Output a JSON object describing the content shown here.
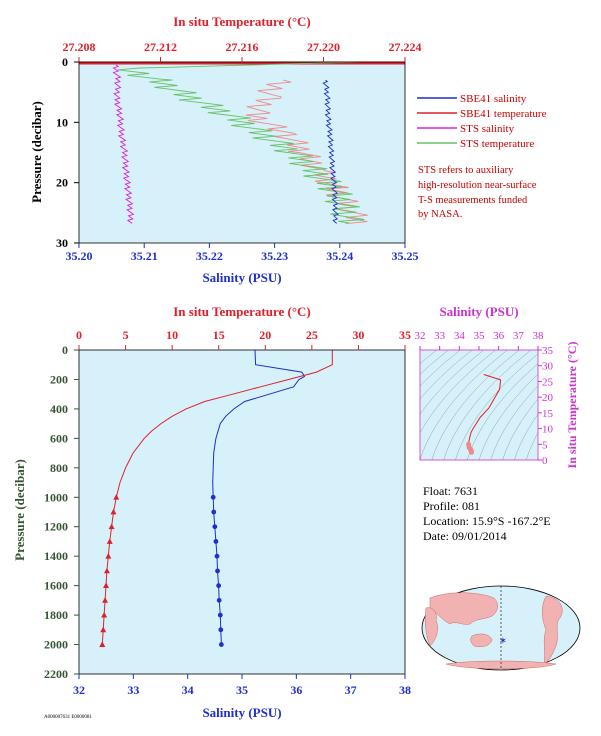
{
  "colors": {
    "panel_bg": "#d6f1fa",
    "salinity": "#1f2fd0",
    "temperature": "#e0202a",
    "sts_salinity": "#dd22dd",
    "sts_temperature": "#66c266",
    "sts_temperature_light": "#f08a8a",
    "pressure_axis": "#355535",
    "ts_axis": "#cc33cc",
    "annotation": "#cc0000",
    "text": "#000000"
  },
  "legend": {
    "items": [
      {
        "label": "SBE41 salinity",
        "color": "#1f2fd0"
      },
      {
        "label": "SBE41 temperature",
        "color": "#e0202a"
      },
      {
        "label": "STS salinity",
        "color": "#dd22dd"
      },
      {
        "label": "STS temperature",
        "color": "#66c266"
      }
    ]
  },
  "note": {
    "lines": [
      "STS refers to auxiliary",
      "high-resolution near-surface",
      "T-S measurements funded",
      "by NASA."
    ]
  },
  "float_info": {
    "float": "Float:  7631",
    "profile": "Profile:  081",
    "location": "Location:  15.9°S  -167.2°E",
    "date": "Date:  09/01/2014"
  },
  "footer_code": "A000007631 E0000081",
  "chart_data": [
    {
      "id": "near-surface",
      "type": "line",
      "xlabel_top": "In situ Temperature (°C)",
      "xlabel_bottom": "Salinity (PSU)",
      "ylabel": "Pressure (decibar)",
      "temperature_ticks": [
        "27.208",
        "27.212",
        "27.216",
        "27.220",
        "27.224"
      ],
      "temperature_range": [
        27.208,
        27.224
      ],
      "salinity_ticks": [
        "35.20",
        "35.21",
        "35.22",
        "35.23",
        "35.24",
        "35.25"
      ],
      "salinity_range": [
        35.2,
        35.25
      ],
      "pressure_ticks": [
        "0",
        "10",
        "20",
        "30"
      ],
      "pressure_range": [
        0,
        30
      ],
      "series": [
        {
          "name": "SBE41 salinity",
          "axis": "salinity",
          "pressure": [
            3,
            6,
            9,
            12,
            15,
            18,
            21,
            24,
            27
          ],
          "values": [
            35.2378,
            35.2381,
            35.2382,
            35.2385,
            35.2387,
            35.2389,
            35.2392,
            35.2393,
            35.2394
          ]
        },
        {
          "name": "STS salinity",
          "axis": "salinity",
          "pressure": [
            0.5,
            3,
            6,
            9,
            12,
            15,
            18,
            21,
            24,
            27
          ],
          "values": [
            35.2055,
            35.206,
            35.2058,
            35.2063,
            35.2065,
            35.207,
            35.2072,
            35.2075,
            35.2078,
            35.208
          ]
        },
        {
          "name": "STS temperature",
          "axis": "temperature",
          "pressure": [
            0,
            1,
            3,
            6,
            9,
            12,
            15,
            18,
            21,
            24,
            27
          ],
          "values": [
            27.2225,
            27.2102,
            27.2118,
            27.2135,
            27.2155,
            27.217,
            27.2185,
            27.2195,
            27.2205,
            27.221,
            27.2213
          ]
        },
        {
          "name": "STS temperature (warm band)",
          "axis": "temperature",
          "pressure": [
            3,
            6,
            9,
            12,
            15,
            18,
            21,
            24,
            27
          ],
          "values": [
            27.2178,
            27.2172,
            27.2166,
            27.2182,
            27.219,
            27.2198,
            27.2206,
            27.2212,
            27.2218
          ]
        }
      ]
    },
    {
      "id": "full-profile",
      "type": "line",
      "xlabel_top": "In situ Temperature (°C)",
      "xlabel_bottom": "Salinity (PSU)",
      "ylabel": "Pressure (decibar)",
      "temperature_ticks": [
        "0",
        "5",
        "10",
        "15",
        "20",
        "25",
        "30",
        "35"
      ],
      "temperature_range": [
        0,
        35
      ],
      "salinity_ticks": [
        "32",
        "33",
        "34",
        "35",
        "36",
        "37",
        "38"
      ],
      "salinity_range": [
        32,
        38
      ],
      "pressure_ticks": [
        "0",
        "200",
        "400",
        "600",
        "800",
        "1000",
        "1200",
        "1400",
        "1600",
        "1800",
        "2000",
        "2200"
      ],
      "pressure_range": [
        0,
        2200
      ],
      "series": [
        {
          "name": "SBE41 salinity",
          "axis": "salinity",
          "pressure": [
            0,
            100,
            150,
            180,
            200,
            250,
            300,
            350,
            400,
            450,
            500,
            600,
            700,
            800,
            900,
            1000,
            1100,
            1200,
            1300,
            1400,
            1500,
            1600,
            1700,
            1800,
            1900,
            2000
          ],
          "values": [
            35.24,
            35.25,
            36.1,
            36.15,
            36.05,
            35.95,
            35.5,
            35.05,
            34.85,
            34.7,
            34.6,
            34.52,
            34.48,
            34.47,
            34.46,
            34.47,
            34.48,
            34.5,
            34.52,
            34.54,
            34.55,
            34.57,
            34.58,
            34.6,
            34.61,
            34.62
          ]
        },
        {
          "name": "SBE41 temperature",
          "axis": "temperature",
          "pressure": [
            0,
            100,
            150,
            200,
            250,
            300,
            350,
            400,
            450,
            500,
            550,
            600,
            700,
            800,
            900,
            1000,
            1100,
            1200,
            1300,
            1400,
            1500,
            1600,
            1700,
            1800,
            1900,
            2000
          ],
          "values": [
            27.2,
            27.2,
            25.5,
            22.5,
            19.5,
            16.5,
            13.5,
            11.5,
            10.0,
            8.8,
            7.8,
            7.0,
            5.8,
            5.0,
            4.4,
            4.0,
            3.7,
            3.5,
            3.3,
            3.15,
            3.0,
            2.9,
            2.8,
            2.7,
            2.6,
            2.5
          ]
        }
      ]
    },
    {
      "id": "ts-diagram",
      "type": "line",
      "xlabel_top": "Salinity (PSU)",
      "ylabel_right": "In situ Temperature (°C)",
      "salinity_ticks": [
        "32",
        "33",
        "34",
        "35",
        "36",
        "37",
        "38"
      ],
      "salinity_range": [
        32,
        38
      ],
      "temperature_ticks": [
        "0",
        "5",
        "10",
        "15",
        "20",
        "25",
        "30",
        "35"
      ],
      "temperature_range": [
        0,
        35
      ],
      "series": [
        {
          "name": "T-S",
          "salinity": [
            35.24,
            35.25,
            36.1,
            36.05,
            35.5,
            35.05,
            34.85,
            34.7,
            34.6,
            34.52,
            34.48,
            34.47,
            34.5,
            34.55,
            34.6,
            34.62
          ],
          "temperature": [
            27.2,
            27.2,
            25.5,
            22.5,
            16.5,
            13.5,
            11.5,
            10.0,
            8.8,
            7.0,
            5.8,
            5.0,
            4.0,
            3.5,
            3.0,
            2.5
          ]
        }
      ]
    }
  ],
  "inset_map": {
    "label": "world-map",
    "marker_color": "#2233cc"
  }
}
